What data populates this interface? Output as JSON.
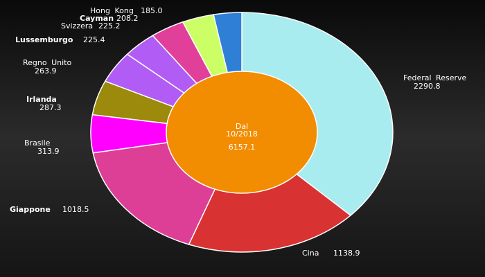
{
  "chart_data": {
    "type": "donut",
    "center_label": [
      "Dal",
      "10/2018"
    ],
    "total": 6157.1,
    "categories": [
      "Federal Reserve",
      "Cina",
      "Giappone",
      "Brasile",
      "Irlanda",
      "Regno Unito",
      "Lussemburgo",
      "Svizzera",
      "Cayman",
      "Hong Kong"
    ],
    "values": [
      2290.8,
      1138.9,
      1018.5,
      313.9,
      287.3,
      263.9,
      225.4,
      225.2,
      208.2,
      185.0
    ],
    "value_labels": [
      "2290.8",
      "1138.9",
      "1018.5",
      "313.9",
      "287.3",
      "263.9",
      "225.4",
      "225.2",
      "208.2",
      "185.0"
    ],
    "colors": [
      "#a8ecef",
      "#d93232",
      "#de3f96",
      "#ff00ff",
      "#9b8a0c",
      "#b05cf5",
      "#b25cf6",
      "#e0409a",
      "#ccff66",
      "#2f7fd6"
    ],
    "center_color": "#f28c00"
  }
}
